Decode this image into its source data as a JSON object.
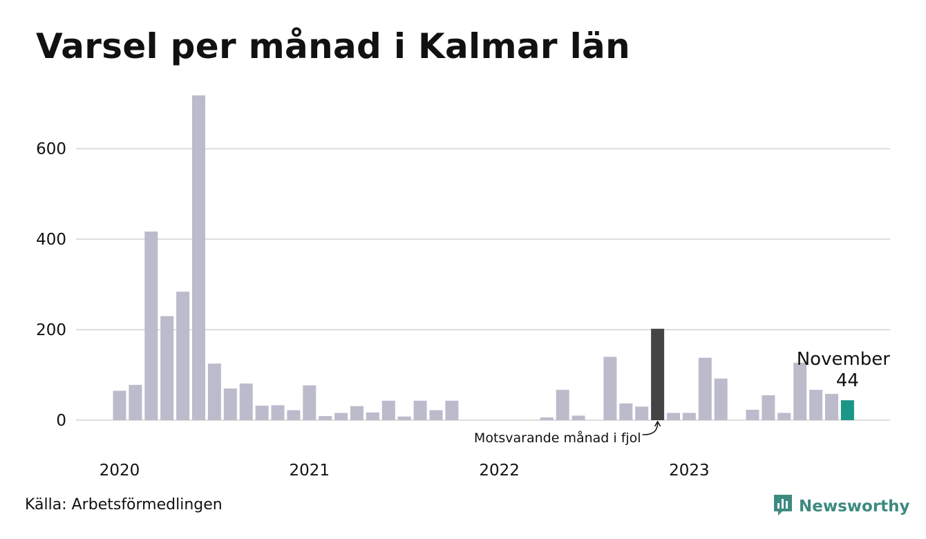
{
  "title": "Varsel per månad i Kalmar län",
  "source": "Källa: Arbetsförmedlingen",
  "brand": {
    "name": "Newsworthy",
    "icon": "newsworthy-logo-icon"
  },
  "colors": {
    "bar": "#bcbbcb",
    "comparison": "#444444",
    "current": "#1b9586",
    "grid": "#dddddd",
    "brand": "#3d8a80"
  },
  "chart_data": {
    "type": "bar",
    "x": [
      "2020-01",
      "2020-02",
      "2020-03",
      "2020-04",
      "2020-05",
      "2020-06",
      "2020-07",
      "2020-08",
      "2020-09",
      "2020-10",
      "2020-11",
      "2020-12",
      "2021-01",
      "2021-02",
      "2021-03",
      "2021-04",
      "2021-05",
      "2021-06",
      "2021-07",
      "2021-08",
      "2021-09",
      "2021-10",
      "2021-11",
      "2021-12",
      "2022-01",
      "2022-02",
      "2022-03",
      "2022-04",
      "2022-05",
      "2022-06",
      "2022-07",
      "2022-08",
      "2022-09",
      "2022-10",
      "2022-11",
      "2022-12",
      "2023-01",
      "2023-02",
      "2023-03",
      "2023-04",
      "2023-05",
      "2023-06",
      "2023-07",
      "2023-08",
      "2023-09",
      "2023-10",
      "2023-11"
    ],
    "values": [
      65,
      78,
      417,
      230,
      284,
      718,
      125,
      70,
      81,
      32,
      33,
      22,
      77,
      9,
      16,
      31,
      17,
      43,
      8,
      43,
      22,
      43,
      0,
      0,
      0,
      0,
      0,
      6,
      67,
      10,
      0,
      140,
      37,
      30,
      202,
      16,
      16,
      138,
      92,
      0,
      23,
      55,
      16,
      127,
      67,
      58,
      44
    ],
    "highlight": {
      "comparison_index": 34,
      "current_index": 46
    },
    "y_ticks": [
      0,
      200,
      400,
      600
    ],
    "ylim": [
      0,
      730
    ],
    "x_tick_labels": [
      "2020",
      "2021",
      "2022",
      "2023"
    ],
    "grid": true,
    "annotations": {
      "current": {
        "month": "November",
        "value": "44"
      },
      "comparison": "Motsvarande månad i fjol"
    }
  }
}
